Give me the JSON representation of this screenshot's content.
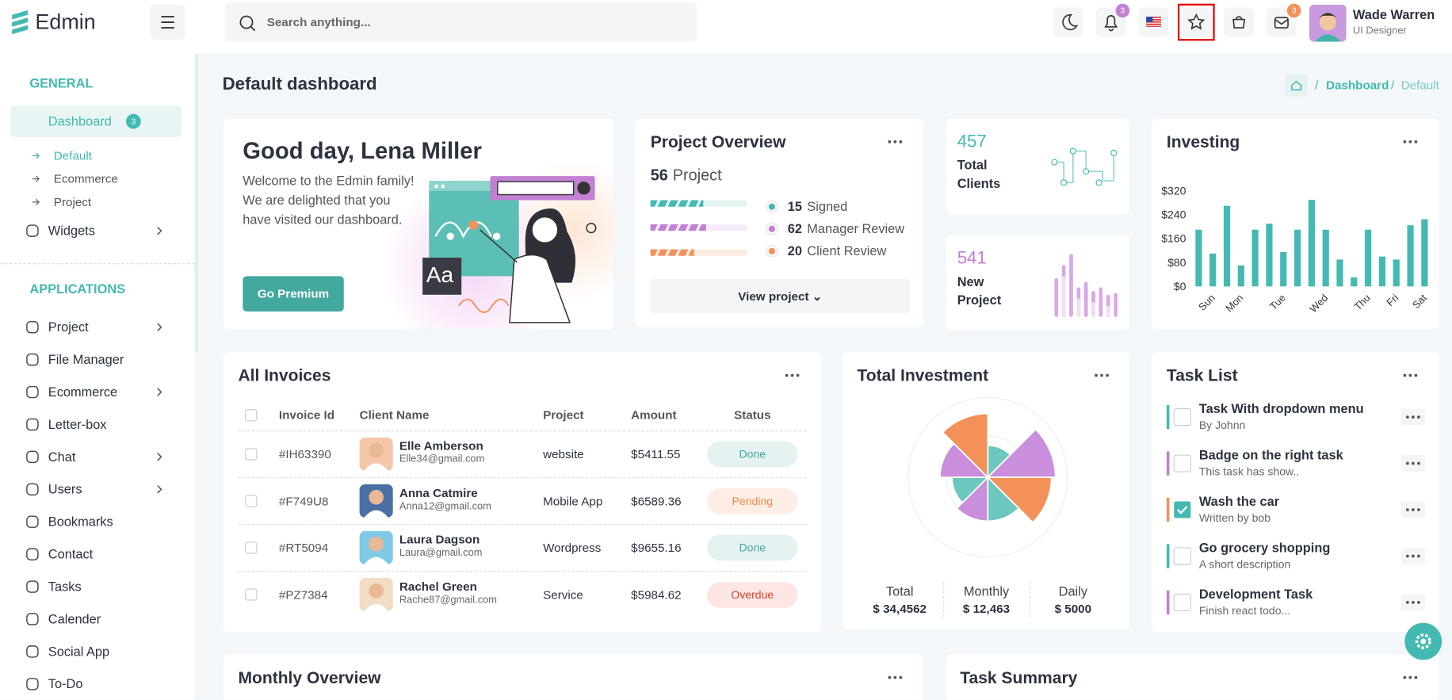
{
  "header": {
    "logo": "Edmin",
    "search_placeholder": "Search anything...",
    "notification_count": 3,
    "message_count": 3,
    "user": {
      "name": "Wade Warren",
      "role": "UI Designer"
    }
  },
  "sidebar": {
    "sections": [
      {
        "title": "GENERAL",
        "items": [
          {
            "label": "Dashboard",
            "badge": 3,
            "active": true,
            "arrow": true,
            "children": [
              "Default",
              "Ecommerce",
              "Project"
            ]
          },
          {
            "label": "Widgets",
            "arrow": true
          }
        ]
      },
      {
        "title": "APPLICATIONS",
        "items": [
          {
            "label": "Project",
            "arrow": true
          },
          {
            "label": "File Manager"
          },
          {
            "label": "Ecommerce",
            "arrow": true
          },
          {
            "label": "Letter-box"
          },
          {
            "label": "Chat",
            "arrow": true
          },
          {
            "label": "Users",
            "arrow": true
          },
          {
            "label": "Bookmarks"
          },
          {
            "label": "Contact"
          },
          {
            "label": "Tasks"
          },
          {
            "label": "Calender"
          },
          {
            "label": "Social App"
          },
          {
            "label": "To-Do"
          }
        ]
      }
    ]
  },
  "page": {
    "title": "Default dashboard",
    "breadcrumb": [
      "Dashboard",
      "Default"
    ]
  },
  "welcome": {
    "title": "Good day, Lena Miller",
    "lines": [
      "Welcome to the Edmin family!",
      "We are delighted that you",
      "have visited our dashboard."
    ],
    "button": "Go Premium",
    "illustration_text": "Aa"
  },
  "project_overview": {
    "title": "Project Overview",
    "count": 56,
    "count_label": "Project",
    "stats": [
      {
        "value": 15,
        "label": "Signed",
        "color": "#43b9b2"
      },
      {
        "value": 62,
        "label": "Manager Review",
        "color": "#c280d2"
      },
      {
        "value": 20,
        "label": "Client Review",
        "color": "#f39159"
      }
    ],
    "button": "View project"
  },
  "stat_cards": [
    {
      "value": 457,
      "label": [
        "Total",
        "Clients"
      ],
      "color": "#43b9b2"
    },
    {
      "value": 541,
      "label": [
        "New",
        "Project"
      ],
      "color": "#c280d2"
    }
  ],
  "invoices": {
    "title": "All Invoices",
    "columns": [
      "Invoice Id",
      "Client Name",
      "Project",
      "Amount",
      "Status"
    ],
    "rows": [
      {
        "id": "#IH63390",
        "name": "Elle Amberson",
        "email": "Elle34@gmail.com",
        "project": "website",
        "amount": "$5411.55",
        "status": "Done"
      },
      {
        "id": "#F749U8",
        "name": "Anna Catmire",
        "email": "Anna12@gmail.com",
        "project": "Mobile App",
        "amount": "$6589.36",
        "status": "Pending"
      },
      {
        "id": "#RT5094",
        "name": "Laura Dagson",
        "email": "Laura@gmail.com",
        "project": "Wordpress",
        "amount": "$9655.16",
        "status": "Done"
      },
      {
        "id": "#PZ7384",
        "name": "Rachel Green",
        "email": "Rache87@gmail.com",
        "project": "Service",
        "amount": "$5984.62",
        "status": "Overdue"
      }
    ]
  },
  "investment_summary": [
    {
      "label": "Total",
      "value": "$ 34,4562"
    },
    {
      "label": "Monthly",
      "value": "$ 12,463"
    },
    {
      "label": "Daily",
      "value": "$ 5000"
    }
  ],
  "tasks": {
    "title": "Task List",
    "items": [
      {
        "title": "Task With dropdown menu",
        "subtitle": "By Johnn",
        "color": "#43b9b2",
        "done": false
      },
      {
        "title": "Badge on the right task",
        "subtitle": "This task has show..",
        "color": "#c280d2",
        "done": false
      },
      {
        "title": "Wash the car",
        "subtitle": "Written by bob",
        "color": "#f39159",
        "done": true
      },
      {
        "title": "Go grocery shopping",
        "subtitle": "A short description",
        "color": "#43b9b2",
        "done": false
      },
      {
        "title": "Development Task",
        "subtitle": "Finish react todo...",
        "color": "#c280d2",
        "done": false
      }
    ]
  },
  "bottom": {
    "monthly_overview": "Monthly Overview",
    "task_summary": "Task Summary"
  },
  "chart_data": [
    {
      "type": "bar",
      "title": "Investing",
      "categories": [
        null,
        "Sun",
        null,
        "Mon",
        null,
        null,
        "Tue",
        null,
        null,
        "Wed",
        null,
        null,
        "Thu",
        null,
        "Fri",
        null,
        "Sat"
      ],
      "values": [
        190,
        110,
        270,
        70,
        190,
        210,
        115,
        190,
        290,
        190,
        90,
        30,
        190,
        100,
        90,
        205,
        225
      ],
      "color": "#43b9b2",
      "ylim": [
        0,
        320
      ],
      "yticks": [
        {
          "value": 0,
          "label": "$0"
        },
        {
          "value": 80,
          "label": "$80"
        },
        {
          "value": 160,
          "label": "$160"
        },
        {
          "value": 240,
          "label": "$240"
        },
        {
          "value": 320,
          "label": "$320"
        }
      ]
    },
    {
      "type": "polar_area",
      "title": "Total Investment",
      "values": [
        40,
        85,
        80,
        55,
        55,
        45,
        60,
        80
      ],
      "rlim": [
        0,
        100
      ],
      "colors": [
        "#6cc7bf",
        "#c98fdc",
        "#f39159",
        "#6cc7bf",
        "#c98fdc",
        "#6cc7bf",
        "#c98fdc",
        "#f39159"
      ]
    }
  ]
}
